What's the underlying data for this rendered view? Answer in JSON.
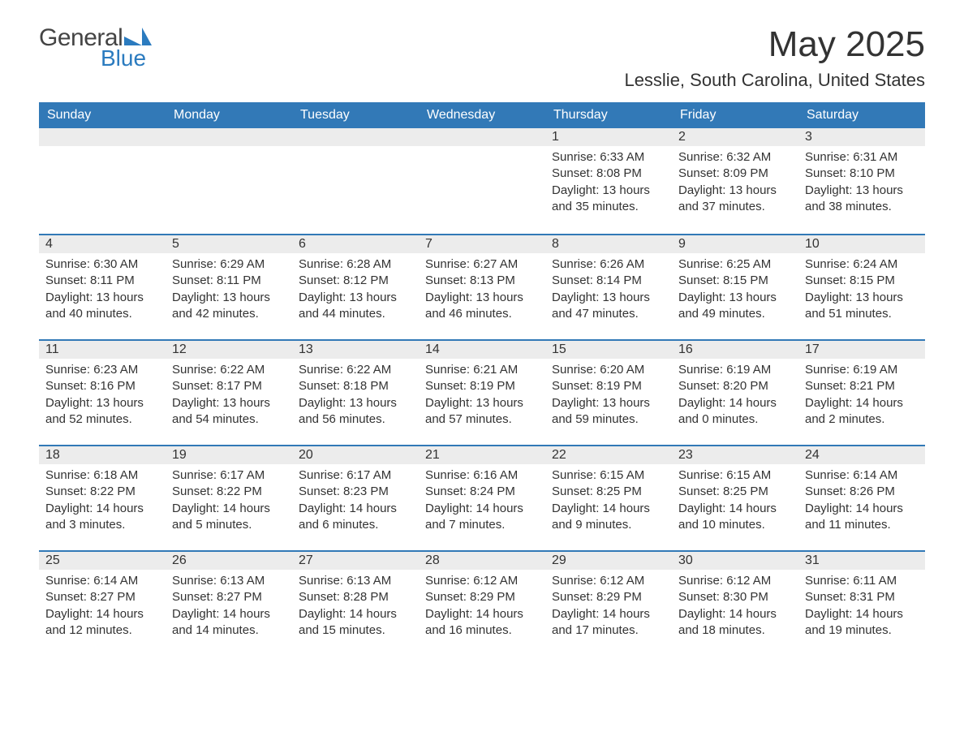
{
  "logo": {
    "word1": "General",
    "word2": "Blue",
    "mark_color": "#2b7bbf"
  },
  "title": {
    "month_year": "May 2025",
    "location": "Lesslie, South Carolina, United States"
  },
  "styling": {
    "header_bg": "#3279b7",
    "header_text": "#ffffff",
    "daynum_bg": "#ececec",
    "week_border": "#3279b7",
    "body_text": "#333333",
    "font_family": "Arial",
    "title_fontsize_pt": 32,
    "location_fontsize_pt": 16,
    "dow_fontsize_pt": 12,
    "cell_fontsize_pt": 11
  },
  "days_of_week": [
    "Sunday",
    "Monday",
    "Tuesday",
    "Wednesday",
    "Thursday",
    "Friday",
    "Saturday"
  ],
  "weeks": [
    [
      null,
      null,
      null,
      null,
      {
        "n": "1",
        "sunrise": "6:33 AM",
        "sunset": "8:08 PM",
        "day_h": "13",
        "day_m": "35"
      },
      {
        "n": "2",
        "sunrise": "6:32 AM",
        "sunset": "8:09 PM",
        "day_h": "13",
        "day_m": "37"
      },
      {
        "n": "3",
        "sunrise": "6:31 AM",
        "sunset": "8:10 PM",
        "day_h": "13",
        "day_m": "38"
      }
    ],
    [
      {
        "n": "4",
        "sunrise": "6:30 AM",
        "sunset": "8:11 PM",
        "day_h": "13",
        "day_m": "40"
      },
      {
        "n": "5",
        "sunrise": "6:29 AM",
        "sunset": "8:11 PM",
        "day_h": "13",
        "day_m": "42"
      },
      {
        "n": "6",
        "sunrise": "6:28 AM",
        "sunset": "8:12 PM",
        "day_h": "13",
        "day_m": "44"
      },
      {
        "n": "7",
        "sunrise": "6:27 AM",
        "sunset": "8:13 PM",
        "day_h": "13",
        "day_m": "46"
      },
      {
        "n": "8",
        "sunrise": "6:26 AM",
        "sunset": "8:14 PM",
        "day_h": "13",
        "day_m": "47"
      },
      {
        "n": "9",
        "sunrise": "6:25 AM",
        "sunset": "8:15 PM",
        "day_h": "13",
        "day_m": "49"
      },
      {
        "n": "10",
        "sunrise": "6:24 AM",
        "sunset": "8:15 PM",
        "day_h": "13",
        "day_m": "51"
      }
    ],
    [
      {
        "n": "11",
        "sunrise": "6:23 AM",
        "sunset": "8:16 PM",
        "day_h": "13",
        "day_m": "52"
      },
      {
        "n": "12",
        "sunrise": "6:22 AM",
        "sunset": "8:17 PM",
        "day_h": "13",
        "day_m": "54"
      },
      {
        "n": "13",
        "sunrise": "6:22 AM",
        "sunset": "8:18 PM",
        "day_h": "13",
        "day_m": "56"
      },
      {
        "n": "14",
        "sunrise": "6:21 AM",
        "sunset": "8:19 PM",
        "day_h": "13",
        "day_m": "57"
      },
      {
        "n": "15",
        "sunrise": "6:20 AM",
        "sunset": "8:19 PM",
        "day_h": "13",
        "day_m": "59"
      },
      {
        "n": "16",
        "sunrise": "6:19 AM",
        "sunset": "8:20 PM",
        "day_h": "14",
        "day_m": "0"
      },
      {
        "n": "17",
        "sunrise": "6:19 AM",
        "sunset": "8:21 PM",
        "day_h": "14",
        "day_m": "2"
      }
    ],
    [
      {
        "n": "18",
        "sunrise": "6:18 AM",
        "sunset": "8:22 PM",
        "day_h": "14",
        "day_m": "3"
      },
      {
        "n": "19",
        "sunrise": "6:17 AM",
        "sunset": "8:22 PM",
        "day_h": "14",
        "day_m": "5"
      },
      {
        "n": "20",
        "sunrise": "6:17 AM",
        "sunset": "8:23 PM",
        "day_h": "14",
        "day_m": "6"
      },
      {
        "n": "21",
        "sunrise": "6:16 AM",
        "sunset": "8:24 PM",
        "day_h": "14",
        "day_m": "7"
      },
      {
        "n": "22",
        "sunrise": "6:15 AM",
        "sunset": "8:25 PM",
        "day_h": "14",
        "day_m": "9"
      },
      {
        "n": "23",
        "sunrise": "6:15 AM",
        "sunset": "8:25 PM",
        "day_h": "14",
        "day_m": "10"
      },
      {
        "n": "24",
        "sunrise": "6:14 AM",
        "sunset": "8:26 PM",
        "day_h": "14",
        "day_m": "11"
      }
    ],
    [
      {
        "n": "25",
        "sunrise": "6:14 AM",
        "sunset": "8:27 PM",
        "day_h": "14",
        "day_m": "12"
      },
      {
        "n": "26",
        "sunrise": "6:13 AM",
        "sunset": "8:27 PM",
        "day_h": "14",
        "day_m": "14"
      },
      {
        "n": "27",
        "sunrise": "6:13 AM",
        "sunset": "8:28 PM",
        "day_h": "14",
        "day_m": "15"
      },
      {
        "n": "28",
        "sunrise": "6:12 AM",
        "sunset": "8:29 PM",
        "day_h": "14",
        "day_m": "16"
      },
      {
        "n": "29",
        "sunrise": "6:12 AM",
        "sunset": "8:29 PM",
        "day_h": "14",
        "day_m": "17"
      },
      {
        "n": "30",
        "sunrise": "6:12 AM",
        "sunset": "8:30 PM",
        "day_h": "14",
        "day_m": "18"
      },
      {
        "n": "31",
        "sunrise": "6:11 AM",
        "sunset": "8:31 PM",
        "day_h": "14",
        "day_m": "19"
      }
    ]
  ],
  "labels": {
    "sunrise": "Sunrise:",
    "sunset": "Sunset:",
    "daylight": "Daylight:",
    "hours_word": "hours",
    "and_word": "and",
    "minutes_word": "minutes."
  }
}
